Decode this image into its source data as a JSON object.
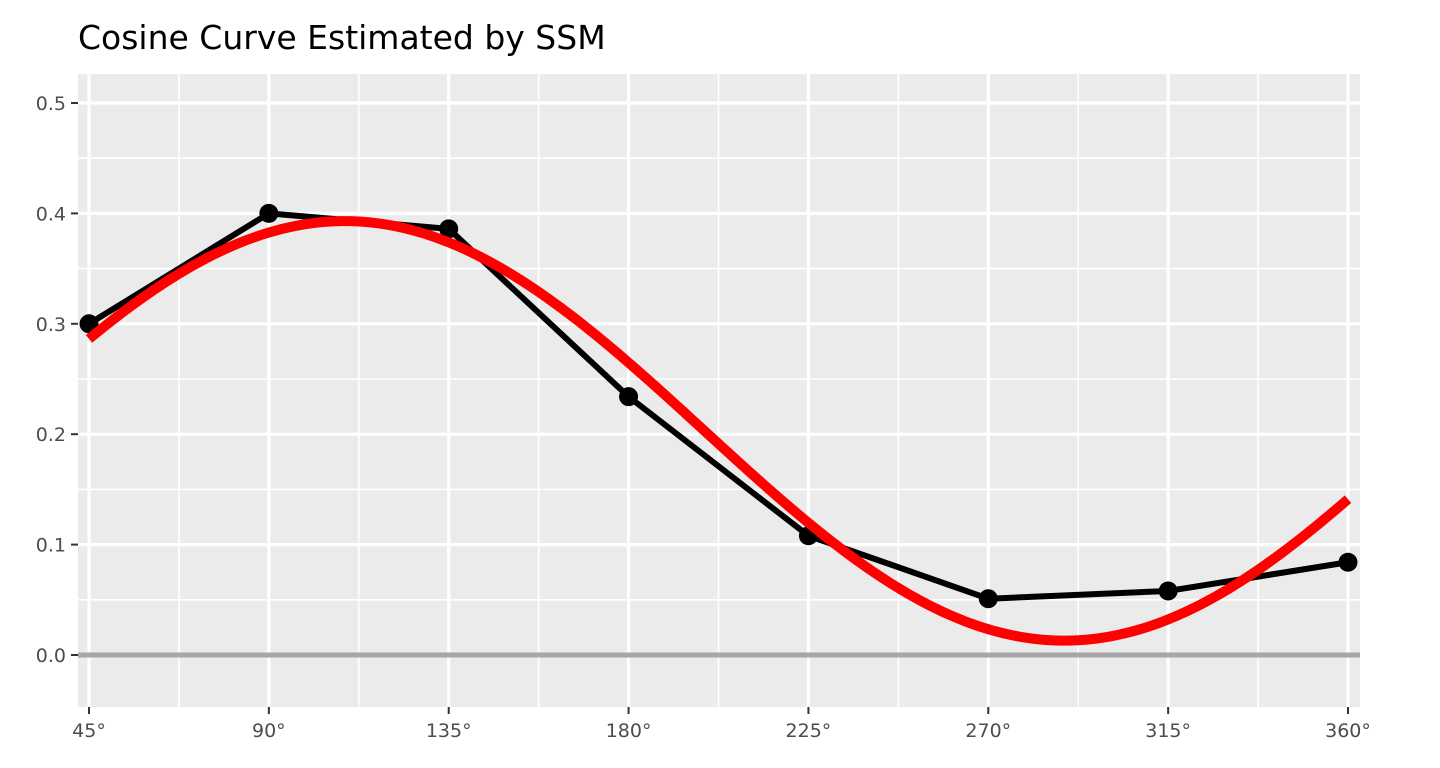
{
  "chart_data": {
    "type": "line",
    "title": "Cosine Curve Estimated by SSM",
    "xlabel": "",
    "ylabel": "",
    "x_ticks": [
      "45°",
      "90°",
      "135°",
      "180°",
      "225°",
      "270°",
      "315°",
      "360°"
    ],
    "y_ticks": [
      "0.0",
      "0.1",
      "0.2",
      "0.3",
      "0.4",
      "0.5"
    ],
    "xlim": [
      45,
      360
    ],
    "ylim": [
      -0.045,
      0.525
    ],
    "grid": true,
    "reference_line": {
      "y": 0.0,
      "color": "#a6a6a6"
    },
    "series": [
      {
        "kind": "observed",
        "color": "#000000",
        "x": [
          45,
          90,
          135,
          180,
          225,
          270,
          315,
          360
        ],
        "y": [
          0.3,
          0.4,
          0.386,
          0.234,
          0.108,
          0.051,
          0.058,
          0.084
        ]
      },
      {
        "kind": "cosine-fit",
        "color": "#ff0000",
        "function": "elevation + amplitude * cos(angle - displacement)",
        "elevation": 0.203,
        "amplitude": 0.19,
        "displacement": 109,
        "x_range": [
          45,
          360
        ]
      }
    ]
  },
  "colors": {
    "panel_background": "#ebebeb",
    "grid_line": "#ffffff",
    "tick_label": "#4d4d4d",
    "tick_mark": "#333333"
  }
}
